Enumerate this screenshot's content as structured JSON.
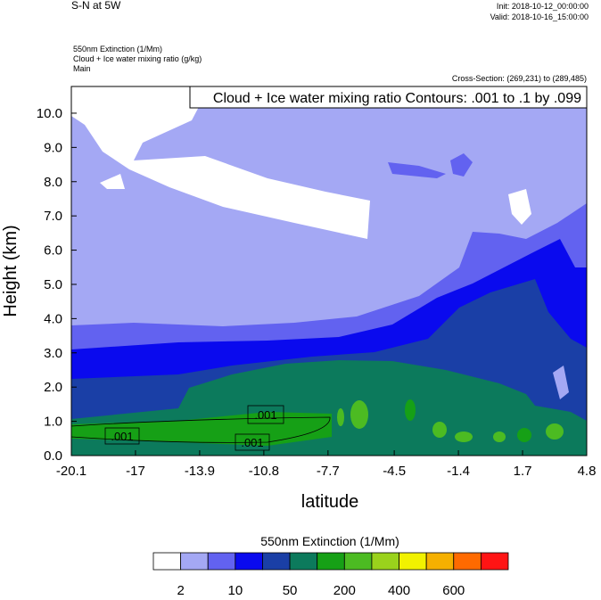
{
  "chart_data": {
    "type": "contour",
    "title": "S-N at 5W",
    "init": "Init: 2018-10-12_00:00:00",
    "valid": "Valid: 2018-10-16_15:00:00",
    "field_1": "550nm Extinction   (1/Mm)",
    "field_2": "Cloud + Ice water mixing ratio   (g/kg)",
    "domain": "Main",
    "cross_section": "Cross-Section: (269,231) to (289,485)",
    "contour_info": "Cloud + Ice water mixing ratio Contours: .001 to .1 by .099",
    "contour_labels": [
      ".001",
      ".001",
      ".001"
    ],
    "x_label": "latitude",
    "y_label": "Height (km)",
    "xlim": [
      -20.1,
      4.8
    ],
    "xticks": [
      -20.1,
      -17.0,
      -13.9,
      -10.8,
      -7.7,
      -4.5,
      -1.4,
      1.7,
      4.8
    ],
    "ylim": [
      0,
      10.78
    ],
    "yticks": [
      {
        "value": 0,
        "label": "0.0"
      },
      {
        "value": 1,
        "label": "1.0"
      },
      {
        "value": 2,
        "label": "2.0"
      },
      {
        "value": 3,
        "label": "3.0"
      },
      {
        "value": 4,
        "label": "4.0"
      },
      {
        "value": 5,
        "label": "5.0"
      },
      {
        "value": 6,
        "label": "6.0"
      },
      {
        "value": 7,
        "label": "7.0"
      },
      {
        "value": 8,
        "label": "8.0"
      },
      {
        "value": 9,
        "label": "9.0"
      },
      {
        "value": 10,
        "label": "10.0"
      }
    ],
    "colorbar": {
      "title": "550nm Extinction  (1/Mm)",
      "colors": [
        "#ffffff",
        "#a4a8f4",
        "#6262f0",
        "#0a0aee",
        "#1a3fa6",
        "#0c7a5c",
        "#16a016",
        "#4cbb22",
        "#9ad21c",
        "#f2f200",
        "#f5b000",
        "#ff6a00",
        "#ff1414"
      ],
      "labels": [
        2,
        10,
        50,
        200,
        400,
        600
      ]
    }
  }
}
